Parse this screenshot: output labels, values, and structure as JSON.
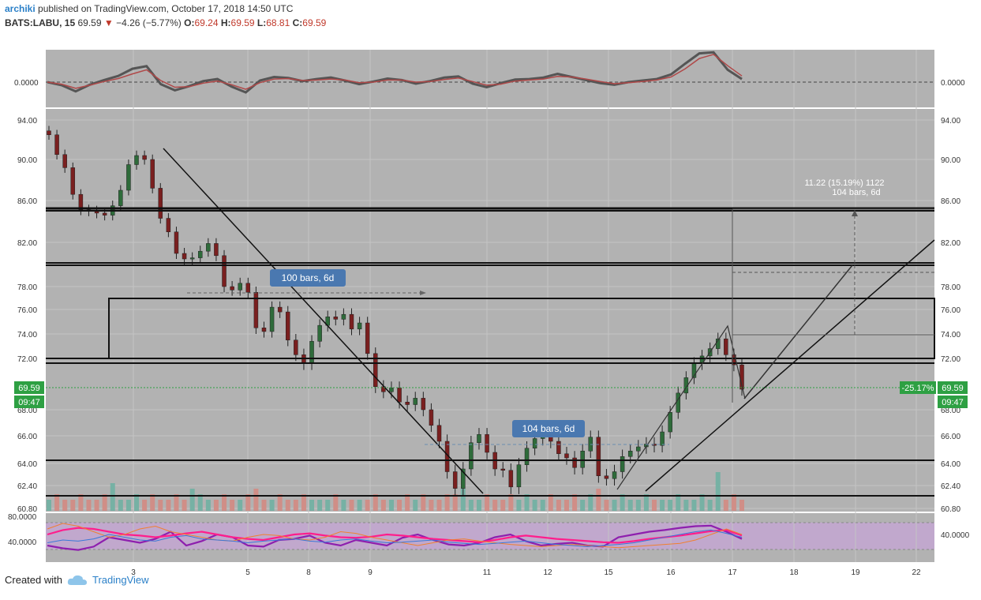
{
  "header": {
    "author": "archiki",
    "published": "published on TradingView.com, October 17, 2018 14:50 UTC",
    "symbol": "BATS:LABU, 15",
    "last": "69.59",
    "change": "−4.26 (−5.77%)",
    "o_label": "O:",
    "o": "69.24",
    "h_label": "H:",
    "h": "69.59",
    "l_label": "L:",
    "l": "68.81",
    "c_label": "C:",
    "c": "69.59"
  },
  "footer": {
    "created_with": "Created with",
    "brand": "TradingView"
  },
  "colors": {
    "bg": "#b2b2b2",
    "up": "#2e6b3a",
    "down": "#7a1f1f",
    "vol_up": "#6fb0a2",
    "vol_down": "#d38a82",
    "rsi": "#8e1fae",
    "pink": "#ff1e8c",
    "orange": "#f08030",
    "band": "#c8a4d8",
    "price_tag": "#2ea043"
  },
  "chart_data": [
    {
      "type": "line",
      "pane": "oscillator",
      "y_tick_labels": [
        "0.0000"
      ],
      "series": [
        {
          "values": [
            0,
            -0.6,
            -1.8,
            -0.5,
            0.4,
            1.2,
            2.6,
            3.1,
            -0.4,
            -1.6,
            -0.8,
            0.2,
            0.6,
            -0.9,
            -2.0,
            0.3,
            1.0,
            0.8,
            0.2,
            0.6,
            0.9,
            0.3,
            -0.4,
            0.1,
            0.7,
            0.4,
            -0.3,
            0.2,
            0.9,
            1.1,
            -0.3,
            -1.0,
            -0.2,
            0.5,
            0.6,
            0.9,
            1.6,
            1.0,
            0.4,
            -0.2,
            -0.5,
            0.0,
            0.3,
            0.6,
            1.5,
            3.6,
            5.6,
            5.8,
            2.4,
            0.6
          ]
        },
        {
          "values": [
            0,
            -0.4,
            -1.2,
            -0.6,
            0.1,
            0.7,
            1.6,
            2.4,
            0.3,
            -1.0,
            -0.9,
            -0.2,
            0.2,
            -0.5,
            -1.4,
            -0.1,
            0.6,
            0.7,
            0.3,
            0.4,
            0.6,
            0.4,
            -0.1,
            0.0,
            0.4,
            0.4,
            0.0,
            0.1,
            0.5,
            0.8,
            0.1,
            -0.6,
            -0.4,
            0.2,
            0.4,
            0.6,
            1.1,
            1.0,
            0.6,
            0.1,
            -0.3,
            -0.1,
            0.1,
            0.4,
            1.0,
            2.6,
            4.6,
            5.4,
            3.2,
            1.2
          ]
        }
      ]
    },
    {
      "type": "candlestick",
      "pane": "price",
      "x_tick_labels": [
        "3",
        "5",
        "8",
        "9",
        "11",
        "12",
        "15",
        "16",
        "17",
        "18",
        "19",
        "22"
      ],
      "y_tick_labels": [
        "94.00",
        "90.00",
        "86.00",
        "82.00",
        "78.00",
        "76.00",
        "74.00",
        "72.00",
        "68.00",
        "66.00",
        "64.00",
        "62.40",
        "60.80"
      ],
      "ylim": [
        60.8,
        94.0
      ],
      "closes": [
        92.5,
        90.5,
        89.2,
        86.6,
        85.1,
        85.0,
        84.8,
        84.6,
        85.5,
        87.0,
        89.5,
        90.4,
        90.0,
        87.2,
        84.3,
        83.0,
        81.0,
        80.5,
        80.6,
        81.2,
        81.9,
        80.8,
        78.0,
        77.7,
        78.3,
        77.5,
        74.5,
        74.2,
        76.2,
        75.8,
        73.5,
        72.3,
        71.6,
        73.4,
        74.7,
        75.4,
        75.2,
        75.6,
        74.4,
        74.9,
        72.4,
        69.8,
        69.4,
        69.7,
        68.6,
        68.4,
        68.9,
        68.0,
        66.8,
        65.6,
        63.4,
        62.2,
        63.6,
        65.5,
        66.1,
        64.8,
        63.6,
        63.5,
        62.3,
        63.9,
        65.1,
        65.8,
        66.0,
        65.6,
        64.7,
        64.4,
        63.7,
        64.9,
        65.9,
        63.1,
        62.9,
        63.4,
        64.5,
        64.9,
        65.2,
        65.4,
        65.3,
        66.3,
        67.8,
        69.3,
        70.5,
        71.6,
        72.2,
        72.8,
        73.6,
        72.3,
        71.5,
        69.6
      ],
      "vwap_trend_labels": [
        "100 bars, 6d",
        "104 bars, 6d"
      ],
      "measure_label": "11.22 (15.19%) 1122",
      "measure_sublabel": "104 bars, 6d",
      "price_tag": "69.59",
      "time_tag": "09:47",
      "change_tag": "-25.17%",
      "volume": [
        2,
        3,
        2,
        2,
        3,
        2,
        2,
        3,
        5,
        2,
        2,
        3,
        2,
        3,
        2,
        2,
        3,
        2,
        4,
        3,
        2,
        2,
        3,
        2,
        2,
        3,
        4,
        2,
        2,
        3,
        2,
        2,
        3,
        2,
        2,
        2,
        3,
        2,
        2,
        2,
        2,
        3,
        2,
        2,
        2,
        3,
        2,
        3,
        2,
        2,
        3,
        3,
        4,
        2,
        2,
        3,
        2,
        2,
        3,
        2,
        3,
        2,
        2,
        3,
        2,
        2,
        3,
        2,
        3,
        4,
        2,
        2,
        3,
        2,
        2,
        3,
        2,
        2,
        2,
        3,
        2,
        2,
        3,
        2,
        7,
        2,
        3,
        2
      ]
    },
    {
      "type": "line",
      "pane": "rsi",
      "y_tick_labels": [
        "80.0000",
        "40.0000"
      ],
      "series": [
        {
          "values": [
            30,
            25,
            22,
            28,
            45,
            40,
            35,
            42,
            55,
            30,
            38,
            50,
            45,
            30,
            28,
            40,
            42,
            48,
            35,
            30,
            40,
            35,
            30,
            44,
            50,
            40,
            32,
            30,
            35,
            45,
            50,
            38,
            30,
            33,
            35,
            30,
            28,
            45,
            50,
            55,
            58,
            62,
            65,
            66,
            55,
            42
          ]
        },
        {
          "values": [
            50,
            58,
            62,
            60,
            55,
            50,
            48,
            45,
            48,
            52,
            55,
            50,
            45,
            42,
            40,
            45,
            50,
            52,
            48,
            45,
            44,
            46,
            50,
            48,
            45,
            42,
            40,
            38,
            36,
            40,
            45,
            48,
            45,
            42,
            40,
            38,
            36,
            35,
            38,
            42,
            45,
            48,
            52,
            56,
            58,
            48
          ]
        },
        {
          "values": [
            60,
            70,
            65,
            55,
            45,
            50,
            60,
            65,
            55,
            50,
            45,
            40,
            38,
            45,
            50,
            48,
            42,
            40,
            45,
            55,
            52,
            45,
            40,
            35,
            30,
            35,
            40,
            42,
            38,
            35,
            32,
            30,
            28,
            30,
            32,
            30,
            28,
            26,
            28,
            30,
            32,
            34,
            40,
            50,
            60,
            50
          ]
        },
        {
          "values": [
            35,
            40,
            38,
            42,
            50,
            45,
            40,
            38,
            45,
            48,
            42,
            40,
            38,
            35,
            38,
            40,
            42,
            38,
            36,
            40,
            42,
            38,
            35,
            36,
            38,
            40,
            36,
            34,
            32,
            34,
            36,
            38,
            35,
            32,
            30,
            28,
            30,
            32,
            35,
            40,
            45,
            50,
            55,
            58,
            52,
            45
          ]
        }
      ]
    }
  ]
}
